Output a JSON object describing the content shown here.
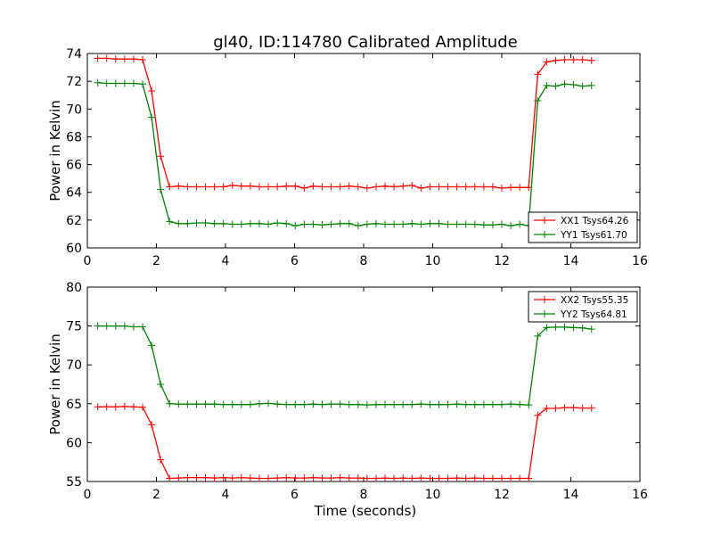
{
  "chart_data": [
    {
      "type": "line",
      "title": "gl40, ID:114780 Calibrated Amplitude",
      "xlabel": "",
      "ylabel": "Power in Kelvin",
      "xlim": [
        0,
        16
      ],
      "ylim": [
        60,
        74
      ],
      "xticks": [
        0,
        2,
        4,
        6,
        8,
        10,
        12,
        14,
        16
      ],
      "yticks": [
        60,
        62,
        64,
        66,
        68,
        70,
        72,
        74
      ],
      "grid": false,
      "legend_position": "lower-right",
      "x": [
        0.3,
        0.56,
        0.82,
        1.08,
        1.34,
        1.6,
        1.86,
        2.12,
        2.38,
        2.64,
        2.9,
        3.16,
        3.42,
        3.68,
        3.94,
        4.2,
        4.46,
        4.72,
        4.98,
        5.24,
        5.5,
        5.76,
        6.02,
        6.28,
        6.54,
        6.8,
        7.06,
        7.32,
        7.58,
        7.84,
        8.1,
        8.36,
        8.62,
        8.88,
        9.14,
        9.4,
        9.66,
        9.92,
        10.18,
        10.44,
        10.7,
        10.96,
        11.22,
        11.48,
        11.74,
        12.0,
        12.26,
        12.52,
        12.78,
        13.04,
        13.3,
        13.56,
        13.82,
        14.08,
        14.34,
        14.6
      ],
      "series": [
        {
          "name": "XX1 Tsys64.26",
          "color": "#ff0000",
          "values": [
            73.65,
            73.65,
            73.6,
            73.6,
            73.6,
            73.55,
            71.3,
            66.6,
            64.4,
            64.45,
            64.4,
            64.4,
            64.4,
            64.4,
            64.4,
            64.5,
            64.45,
            64.45,
            64.4,
            64.4,
            64.4,
            64.45,
            64.45,
            64.3,
            64.45,
            64.4,
            64.4,
            64.4,
            64.45,
            64.4,
            64.3,
            64.4,
            64.45,
            64.4,
            64.45,
            64.5,
            64.3,
            64.4,
            64.4,
            64.4,
            64.4,
            64.4,
            64.4,
            64.4,
            64.4,
            64.3,
            64.35,
            64.35,
            64.35,
            72.5,
            73.4,
            73.5,
            73.55,
            73.55,
            73.55,
            73.5
          ]
        },
        {
          "name": "YY1 Tsys61.70",
          "color": "#008000",
          "values": [
            71.9,
            71.85,
            71.85,
            71.85,
            71.85,
            71.8,
            69.4,
            64.2,
            61.9,
            61.75,
            61.75,
            61.8,
            61.8,
            61.75,
            61.75,
            61.7,
            61.7,
            61.75,
            61.75,
            61.7,
            61.8,
            61.75,
            61.6,
            61.7,
            61.7,
            61.65,
            61.7,
            61.75,
            61.75,
            61.6,
            61.7,
            61.75,
            61.7,
            61.7,
            61.7,
            61.75,
            61.7,
            61.75,
            61.75,
            61.7,
            61.7,
            61.7,
            61.7,
            61.65,
            61.65,
            61.7,
            61.6,
            61.7,
            61.6,
            70.6,
            71.7,
            71.65,
            71.8,
            71.75,
            71.65,
            71.7
          ]
        }
      ]
    },
    {
      "type": "line",
      "title": "",
      "xlabel": "Time (seconds)",
      "ylabel": "Power in Kelvin",
      "xlim": [
        0,
        16
      ],
      "ylim": [
        55,
        80
      ],
      "xticks": [
        0,
        2,
        4,
        6,
        8,
        10,
        12,
        14,
        16
      ],
      "yticks": [
        55,
        60,
        65,
        70,
        75,
        80
      ],
      "grid": false,
      "legend_position": "top-right",
      "x": [
        0.3,
        0.56,
        0.82,
        1.08,
        1.34,
        1.6,
        1.86,
        2.12,
        2.38,
        2.64,
        2.9,
        3.16,
        3.42,
        3.68,
        3.94,
        4.2,
        4.46,
        4.72,
        4.98,
        5.24,
        5.5,
        5.76,
        6.02,
        6.28,
        6.54,
        6.8,
        7.06,
        7.32,
        7.58,
        7.84,
        8.1,
        8.36,
        8.62,
        8.88,
        9.14,
        9.4,
        9.66,
        9.92,
        10.18,
        10.44,
        10.7,
        10.96,
        11.22,
        11.48,
        11.74,
        12.0,
        12.26,
        12.52,
        12.78,
        13.04,
        13.3,
        13.56,
        13.82,
        14.08,
        14.34,
        14.6
      ],
      "series": [
        {
          "name": "XX2 Tsys55.35",
          "color": "#ff0000",
          "values": [
            64.6,
            64.6,
            64.6,
            64.65,
            64.6,
            64.55,
            62.3,
            57.8,
            55.4,
            55.45,
            55.5,
            55.5,
            55.5,
            55.45,
            55.5,
            55.45,
            55.5,
            55.45,
            55.4,
            55.4,
            55.45,
            55.5,
            55.45,
            55.45,
            55.5,
            55.45,
            55.45,
            55.5,
            55.45,
            55.45,
            55.4,
            55.4,
            55.45,
            55.4,
            55.45,
            55.4,
            55.45,
            55.4,
            55.4,
            55.4,
            55.45,
            55.4,
            55.45,
            55.4,
            55.4,
            55.4,
            55.4,
            55.4,
            55.4,
            63.5,
            64.4,
            64.4,
            64.5,
            64.5,
            64.45,
            64.45
          ]
        },
        {
          "name": "YY2 Tsys64.81",
          "color": "#008000",
          "values": [
            75.0,
            75.0,
            75.0,
            75.0,
            74.9,
            74.9,
            72.5,
            67.5,
            65.0,
            64.95,
            64.95,
            64.95,
            64.95,
            64.95,
            64.9,
            64.9,
            64.9,
            64.9,
            65.0,
            65.05,
            64.95,
            64.9,
            64.9,
            64.9,
            64.95,
            64.9,
            64.95,
            64.95,
            64.9,
            64.9,
            64.85,
            64.9,
            64.9,
            64.9,
            64.9,
            64.9,
            64.95,
            64.9,
            64.9,
            64.9,
            64.95,
            64.9,
            64.9,
            64.9,
            64.9,
            64.9,
            64.95,
            64.9,
            64.85,
            73.7,
            74.8,
            74.85,
            74.85,
            74.8,
            74.75,
            74.6
          ]
        }
      ]
    }
  ]
}
